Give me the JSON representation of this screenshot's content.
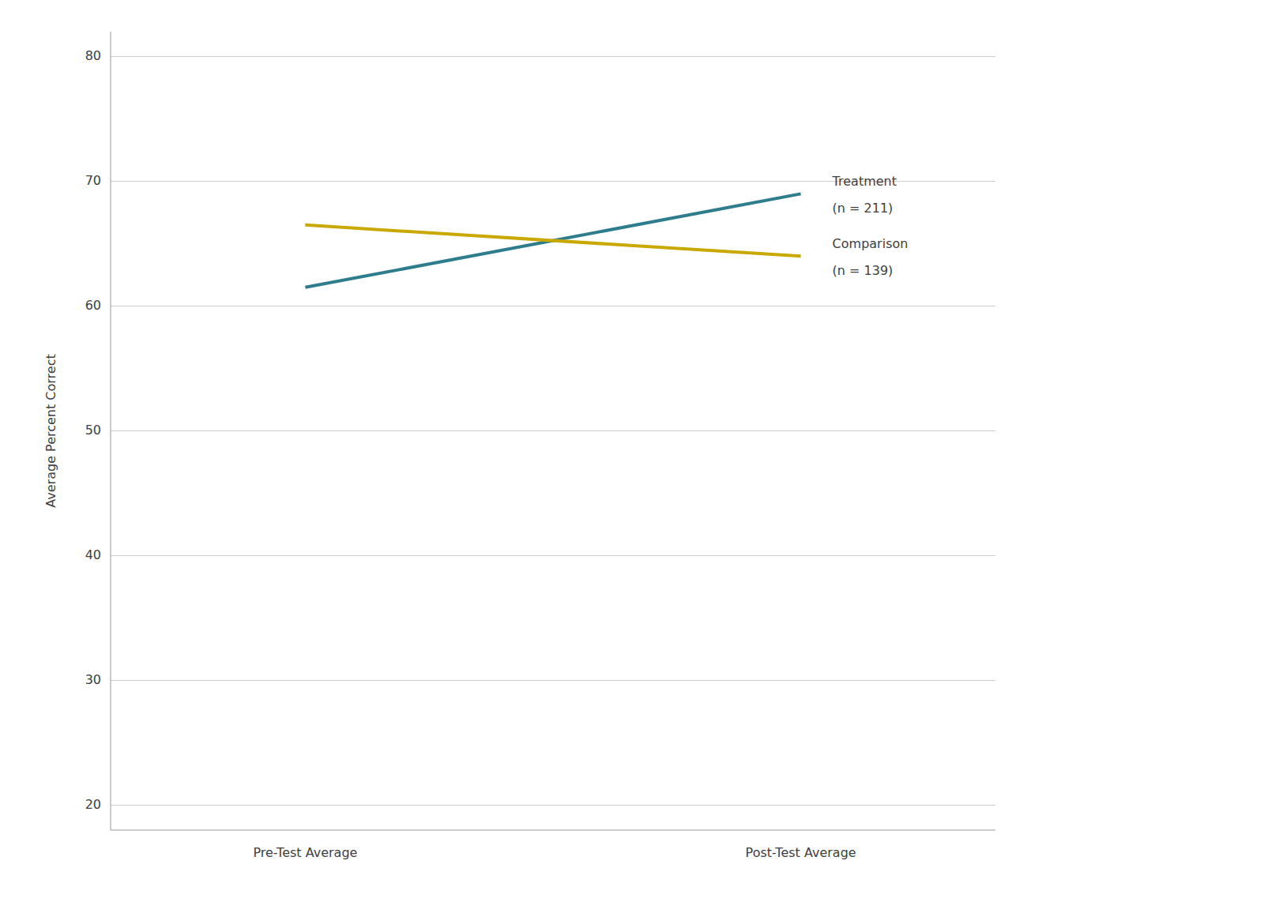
{
  "chart_data": {
    "type": "line",
    "categories": [
      "Pre-Test Average",
      "Post-Test Average"
    ],
    "series": [
      {
        "name": "Treatment",
        "annotation": "(n = 211)",
        "color": "#2e7d8c",
        "values": [
          61.5,
          69.0
        ]
      },
      {
        "name": "Comparison",
        "annotation": "(n = 139)",
        "color": "#c9a800",
        "values": [
          66.5,
          64.0
        ]
      }
    ],
    "y_label": "Average Percent Correct",
    "ylim": [
      18,
      82
    ],
    "yticks": [
      20,
      30,
      40,
      50,
      60,
      70,
      80
    ],
    "grid": true
  }
}
